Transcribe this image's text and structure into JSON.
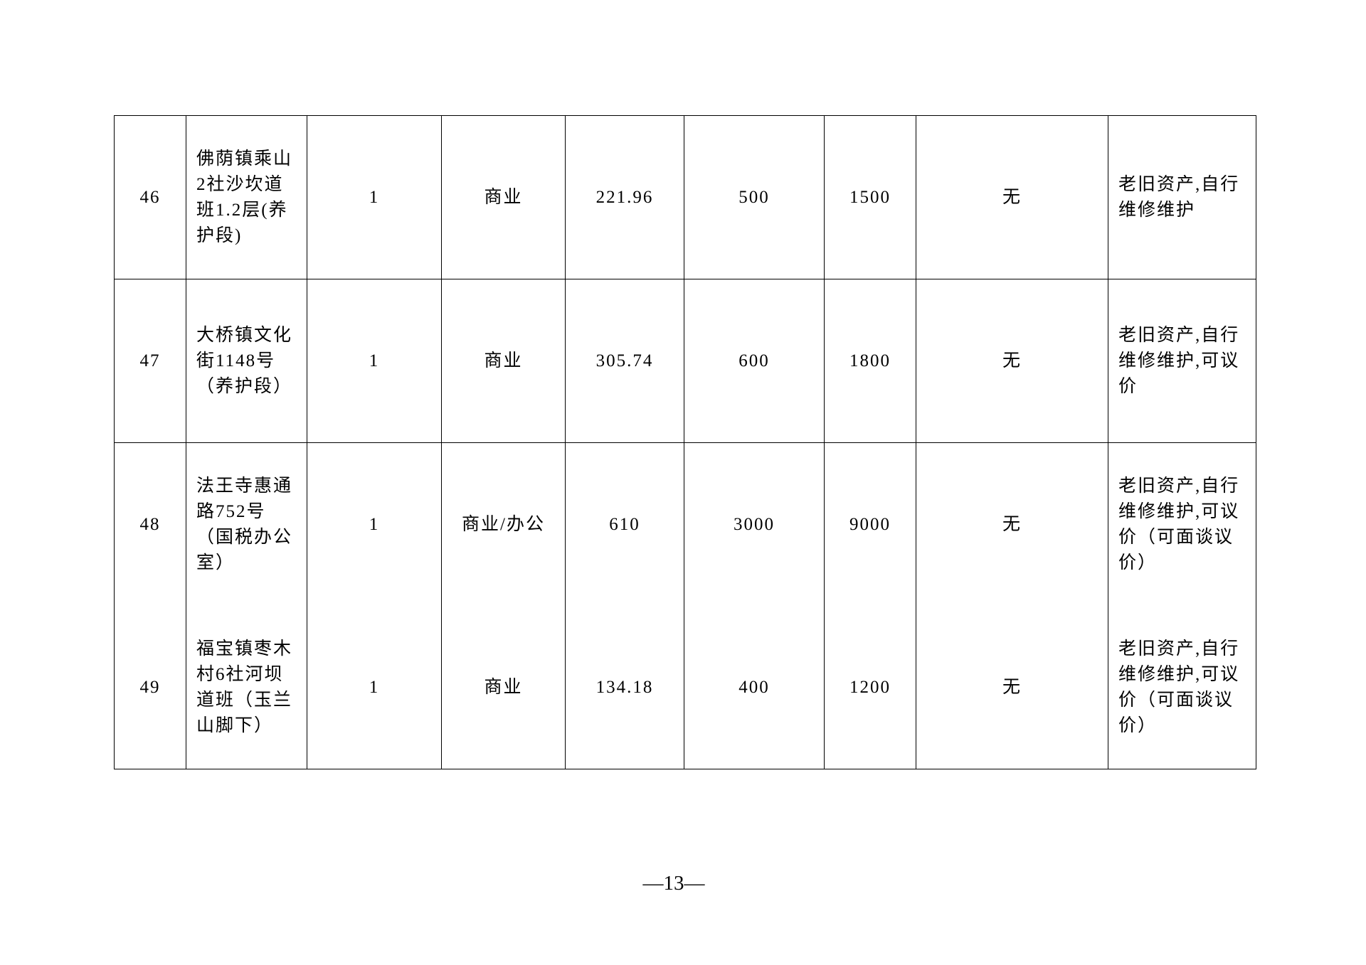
{
  "table": {
    "rows": [
      {
        "no": "46",
        "address": "佛荫镇乘山2社沙坎道班1.2层(养护段)",
        "count": "1",
        "use": "商业",
        "area": "221.96",
        "monthly": "500",
        "deposit": "1500",
        "other": "无",
        "note": "老旧资产,自行维修维护"
      },
      {
        "no": "47",
        "address": "大桥镇文化街1148号（养护段）",
        "count": "1",
        "use": "商业",
        "area": "305.74",
        "monthly": "600",
        "deposit": "1800",
        "other": "无",
        "note": "老旧资产,自行维修维护,可议价"
      },
      {
        "no": "48",
        "address": "法王寺惠通路752号（国税办公室）",
        "count": "1",
        "use": "商业/办公",
        "area": "610",
        "monthly": "3000",
        "deposit": "9000",
        "other": "无",
        "note": "老旧资产,自行维修维护,可议价（可面谈议价）"
      },
      {
        "no": "49",
        "address": "福宝镇枣木村6社河坝道班（玉兰山脚下）",
        "count": "1",
        "use": "商业",
        "area": "134.18",
        "monthly": "400",
        "deposit": "1200",
        "other": "无",
        "note": "老旧资产,自行维修维护,可议价（可面谈议价）"
      }
    ]
  },
  "footer": {
    "page_number": "—13—"
  }
}
